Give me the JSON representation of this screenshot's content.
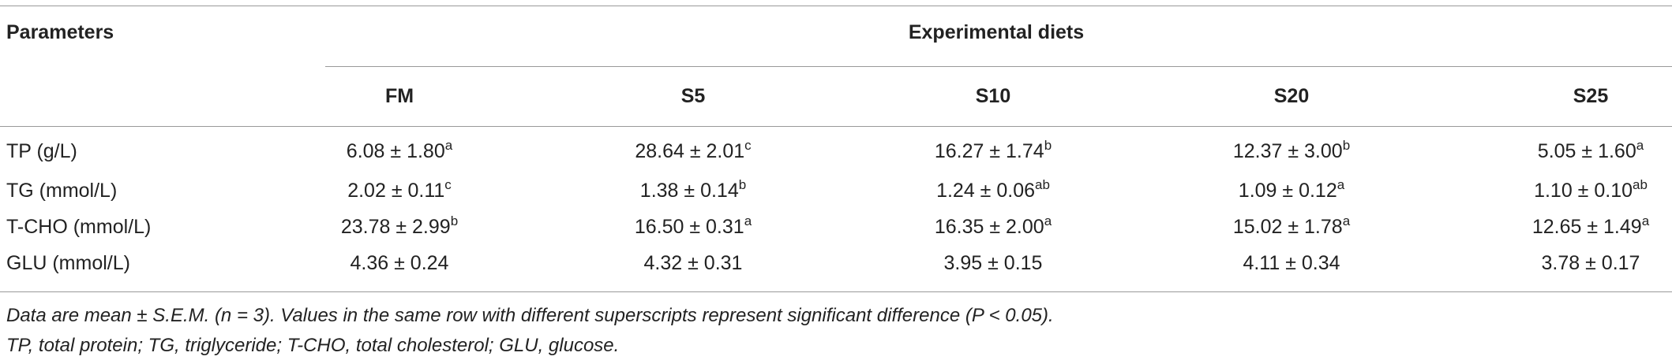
{
  "table": {
    "header": {
      "param": "Parameters",
      "group": "Experimental diets",
      "columns": [
        "FM",
        "S5",
        "S10",
        "S20",
        "S25"
      ]
    },
    "rows": [
      {
        "label": "TP (g/L)",
        "cells": [
          {
            "text": "6.08 ± 1.80",
            "sup": "a"
          },
          {
            "text": "28.64 ± 2.01",
            "sup": "c"
          },
          {
            "text": "16.27 ± 1.74",
            "sup": "b"
          },
          {
            "text": "12.37 ± 3.00",
            "sup": "b"
          },
          {
            "text": "5.05 ± 1.60",
            "sup": "a"
          }
        ]
      },
      {
        "label": "TG (mmol/L)",
        "cells": [
          {
            "text": "2.02 ± 0.11",
            "sup": "c"
          },
          {
            "text": "1.38 ± 0.14",
            "sup": "b"
          },
          {
            "text": "1.24 ± 0.06",
            "sup": "ab"
          },
          {
            "text": "1.09 ± 0.12",
            "sup": "a"
          },
          {
            "text": "1.10 ± 0.10",
            "sup": "ab"
          }
        ]
      },
      {
        "label": "T-CHO (mmol/L)",
        "cells": [
          {
            "text": "23.78 ± 2.99",
            "sup": "b"
          },
          {
            "text": "16.50 ± 0.31",
            "sup": "a"
          },
          {
            "text": "16.35 ± 2.00",
            "sup": "a"
          },
          {
            "text": "15.02 ± 1.78",
            "sup": "a"
          },
          {
            "text": "12.65 ± 1.49",
            "sup": "a"
          }
        ]
      },
      {
        "label": "GLU (mmol/L)",
        "cells": [
          {
            "text": "4.36 ± 0.24"
          },
          {
            "text": "4.32 ± 0.31"
          },
          {
            "text": "3.95 ± 0.15"
          },
          {
            "text": "4.11 ± 0.34"
          },
          {
            "text": "3.78 ± 0.17"
          }
        ]
      }
    ]
  },
  "footnotes": [
    "Data are mean ± S.E.M. (n = 3). Values in the same row with different superscripts represent significant difference (P < 0.05).",
    "TP, total protein; TG, triglyceride; T-CHO, total cholesterol; GLU, glucose."
  ]
}
